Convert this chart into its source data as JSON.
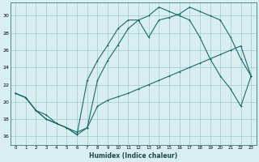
{
  "xlabel": "Humidex (Indice chaleur)",
  "bg_color": "#d8eef0",
  "grid_color": "#aacfcf",
  "line_color": "#1a6b6b",
  "xlim": [
    -0.5,
    23.5
  ],
  "ylim": [
    15.0,
    31.5
  ],
  "yticks": [
    16,
    18,
    20,
    22,
    24,
    26,
    28,
    30
  ],
  "xticks": [
    0,
    1,
    2,
    3,
    4,
    5,
    6,
    7,
    8,
    9,
    10,
    11,
    12,
    13,
    14,
    15,
    16,
    17,
    18,
    19,
    20,
    21,
    22,
    23
  ],
  "s1_x": [
    0,
    1,
    2,
    3,
    4,
    5,
    6,
    7,
    8,
    9,
    10,
    11,
    12,
    13,
    14,
    15,
    16,
    17,
    18,
    19,
    20,
    21,
    22,
    23
  ],
  "s1_y": [
    21.0,
    20.5,
    19.0,
    18.5,
    17.5,
    17.0,
    16.5,
    17.0,
    19.5,
    20.2,
    20.6,
    21.0,
    21.5,
    22.0,
    22.5,
    23.0,
    23.5,
    24.0,
    24.5,
    25.0,
    25.5,
    26.0,
    26.5,
    23.0
  ],
  "s2_x": [
    0,
    1,
    2,
    3,
    4,
    5,
    6,
    7,
    8,
    9,
    10,
    11,
    12,
    13,
    14,
    15,
    16,
    17,
    18,
    19,
    20,
    21,
    22,
    23
  ],
  "s2_y": [
    21.0,
    20.5,
    19.0,
    18.0,
    17.5,
    17.0,
    16.2,
    22.5,
    24.8,
    26.6,
    28.5,
    29.5,
    29.5,
    30.0,
    31.0,
    30.5,
    30.0,
    29.5,
    27.5,
    25.0,
    23.0,
    21.5,
    19.5,
    23.0
  ],
  "s3_x": [
    0,
    1,
    2,
    3,
    4,
    5,
    6,
    7,
    8,
    9,
    10,
    11,
    12,
    13,
    14,
    15,
    16,
    17,
    18,
    19,
    20,
    21,
    22,
    23
  ],
  "s3_y": [
    21.0,
    20.5,
    19.0,
    18.0,
    17.5,
    17.0,
    16.2,
    17.0,
    22.5,
    24.8,
    26.6,
    28.5,
    29.5,
    27.5,
    29.5,
    29.8,
    30.2,
    31.0,
    30.5,
    30.0,
    29.5,
    27.5,
    25.0,
    23.0
  ]
}
